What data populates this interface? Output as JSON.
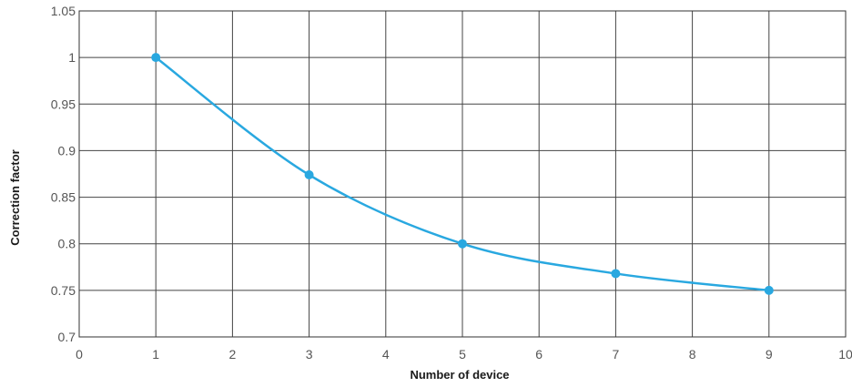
{
  "chart_data": {
    "type": "line",
    "title": "",
    "xlabel": "Number of device",
    "ylabel": "Correction factor",
    "xlim": [
      0,
      10
    ],
    "ylim": [
      0.7,
      1.05
    ],
    "xticks": [
      "0",
      "1",
      "2",
      "3",
      "4",
      "5",
      "6",
      "7",
      "8",
      "9",
      "10"
    ],
    "yticks": [
      "0.7",
      "0.75",
      "0.8",
      "0.85",
      "0.9",
      "0.95",
      "1",
      "1.05"
    ],
    "grid": true,
    "legend": "none",
    "series": [
      {
        "color": "#29a8e0",
        "x": [
          1,
          3,
          5,
          7,
          9
        ],
        "y": [
          1.0,
          0.874,
          0.8,
          0.768,
          0.75
        ]
      }
    ]
  }
}
